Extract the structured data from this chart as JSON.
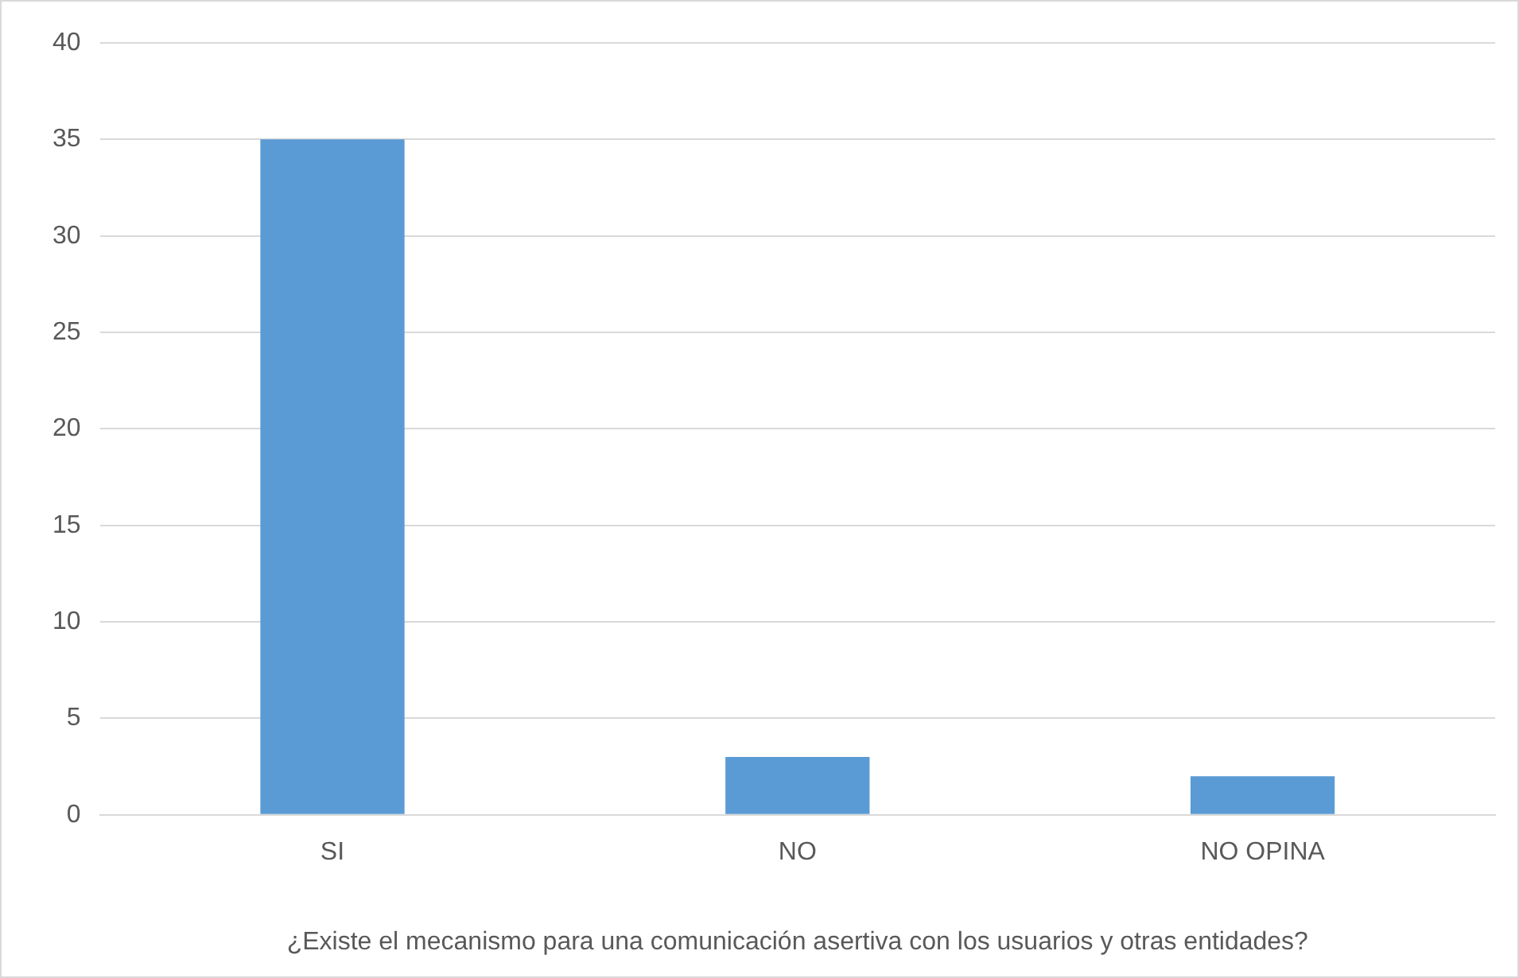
{
  "chart_data": {
    "type": "bar",
    "xlabel": "¿Existe el mecanismo para una comunicación asertiva con los usuarios y otras entidades?",
    "categories": [
      "SI",
      "NO",
      "NO OPINA"
    ],
    "values": [
      35,
      3,
      2
    ],
    "color": "#5b9bd5",
    "ylim": [
      0,
      40
    ],
    "yticks": [
      0,
      5,
      10,
      15,
      20,
      25,
      30,
      35,
      40
    ],
    "grid": "y",
    "legend": false
  }
}
